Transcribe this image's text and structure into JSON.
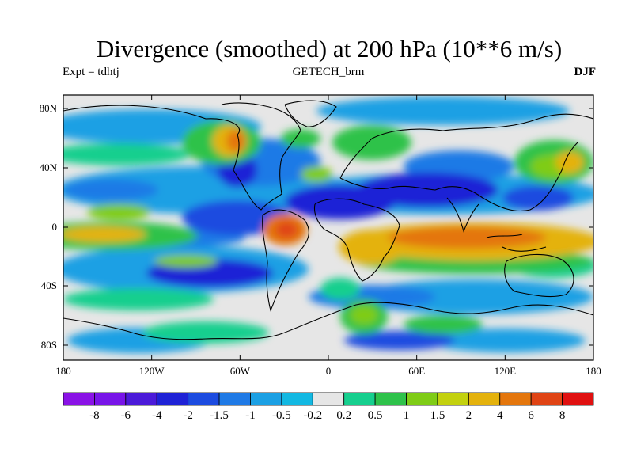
{
  "title": "Divergence (smoothed) at 200 hPa (10**6 m/s)",
  "expt_label": "Expt = tdhtj",
  "dataset_label": "GETECH_brm",
  "season_label": "DJF",
  "y_ticks": [
    "80N",
    "40N",
    "0",
    "40S",
    "80S"
  ],
  "x_ticks": [
    "180",
    "120W",
    "60W",
    "0",
    "60E",
    "120E",
    "180"
  ],
  "colorbar": {
    "levels": [
      "-8",
      "-6",
      "-4",
      "-2",
      "-1.5",
      "-1",
      "-0.5",
      "-0.2",
      "0.2",
      "0.5",
      "1",
      "1.5",
      "2",
      "4",
      "6",
      "8"
    ],
    "colors": [
      "#8a12e6",
      "#7814e8",
      "#4b1ad9",
      "#1f22d6",
      "#1c4be0",
      "#1f7ae6",
      "#1ba0e4",
      "#12b8e2",
      "#e6e6e6",
      "#16cf8e",
      "#2ec24a",
      "#7fcc16",
      "#c3d10e",
      "#e4b20c",
      "#e4760c",
      "#e04414",
      "#e01010"
    ]
  },
  "map_colors": {
    "background": "#e6e6e6",
    "strong_negative": "#1f22d6",
    "negative": "#1c4be0",
    "weak_negative": "#1f7ae6",
    "slight_negative": "#1ba0e4",
    "weak_positive": "#16cf8e",
    "positive": "#2ec24a",
    "moderate_positive": "#7fcc16",
    "high_positive": "#e4b20c",
    "very_high_positive": "#e4760c",
    "extreme_positive": "#e04414",
    "coastline": "#000000"
  }
}
